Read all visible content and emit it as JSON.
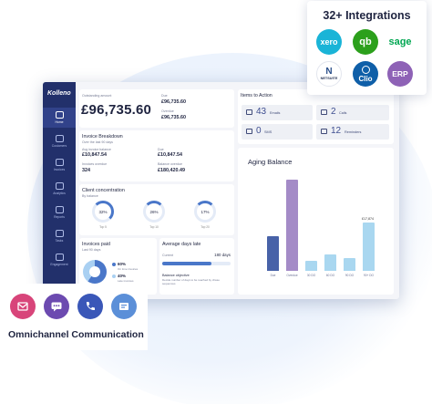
{
  "app": {
    "brand": "Kolleno",
    "nav": [
      {
        "label": "Home",
        "icon": "home-icon"
      },
      {
        "label": "Customers",
        "icon": "customers-icon"
      },
      {
        "label": "Invoices",
        "icon": "invoices-icon"
      },
      {
        "label": "Analytics",
        "icon": "analytics-icon"
      },
      {
        "label": "Reports",
        "icon": "reports-icon"
      },
      {
        "label": "Tasks",
        "icon": "tasks-icon"
      },
      {
        "label": "Engagement",
        "icon": "engagement-icon"
      }
    ]
  },
  "outstanding": {
    "label": "Outstanding amount",
    "amount": "£96,735.60",
    "due_label": "Due",
    "due_value": "£96,735.60",
    "overdue_label": "Overdue",
    "overdue_value": "£96,735.60"
  },
  "invoice_breakdown": {
    "title": "Invoice Breakdown",
    "subtitle": "Over the last 90 days",
    "avg_label": "Avg invoice balance",
    "avg_value": "£10,847.54",
    "due_label": "Due",
    "due_value": "£10,847.54",
    "count_label": "Invoices overdue",
    "count_value": "324",
    "balance_label": "Balance overdue",
    "balance_value": "£180,420.49"
  },
  "client_concentration": {
    "title": "Client concentration",
    "subtitle": "By balance",
    "rings": [
      {
        "value": "32%",
        "label": "Top 5"
      },
      {
        "value": "26%",
        "label": "Top 10"
      },
      {
        "value": "17%",
        "label": "Top 20"
      }
    ]
  },
  "invoices_paid": {
    "title": "Invoices paid",
    "subtitle": "Last 90 days",
    "legend": [
      {
        "value": "60%",
        "label": "On time invoices"
      },
      {
        "value": "40%",
        "label": "Late invoices"
      }
    ]
  },
  "avg_days_late": {
    "title": "Average days late",
    "current_label": "Current",
    "current_value": "180 days",
    "objective_title": "Balance objective",
    "objective_text": "Decide number of days to be reached by chase sequences"
  },
  "items_to_action": {
    "title": "Items to Action",
    "items": [
      {
        "count": "43",
        "label": "Emails",
        "icon": "mail-icon"
      },
      {
        "count": "2",
        "label": "Calls",
        "icon": "phone-icon"
      },
      {
        "count": "0",
        "label": "SMS",
        "icon": "sms-icon"
      },
      {
        "count": "12",
        "label": "Reminders",
        "icon": "bell-icon"
      }
    ]
  },
  "chart_data": {
    "type": "bar",
    "title": "Aging Balance",
    "categories": [
      "Due",
      "Overdue",
      "30 DO",
      "60 DO",
      "90 DO",
      "90+ DO"
    ],
    "values": [
      58,
      155,
      17,
      28,
      22,
      82
    ],
    "colors": [
      "#4862a8",
      "#a48bc7",
      "#a9d7f0",
      "#a9d7f0",
      "#a9d7f0",
      "#a9d7f0"
    ],
    "annotation": "£17,874",
    "ylim": [
      0,
      170
    ]
  },
  "integrations": {
    "title": "32+ Integrations",
    "logos": [
      {
        "text": "xero",
        "icon": "xero-logo-icon",
        "bg": "#1ab4d7",
        "fg": "#ffffff"
      },
      {
        "text": "qb",
        "icon": "quickbooks-logo-icon",
        "bg": "#2ca01c",
        "fg": "#ffffff"
      },
      {
        "text": "sage",
        "icon": "sage-logo-icon",
        "bg": "#ffffff",
        "fg": "#00a651"
      },
      {
        "text": "NETSUITE",
        "icon": "netsuite-logo-icon",
        "bg": "#ffffff",
        "fg": "#1f2d4f"
      },
      {
        "text": "Clio",
        "icon": "clio-logo-icon",
        "bg": "#0f5fa8",
        "fg": "#ffffff"
      },
      {
        "text": "ERP",
        "icon": "erp-logo-icon",
        "bg": "#8e62b6",
        "fg": "#ffffff"
      }
    ]
  },
  "omnichannel": {
    "title": "Omnichannel Communication",
    "icons": [
      {
        "name": "email-icon",
        "bg": "#d8457a"
      },
      {
        "name": "chat-icon",
        "bg": "#6c4ab0"
      },
      {
        "name": "phone-icon",
        "bg": "#3a57b8"
      },
      {
        "name": "sms-icon",
        "bg": "#5b8fd8"
      }
    ]
  }
}
